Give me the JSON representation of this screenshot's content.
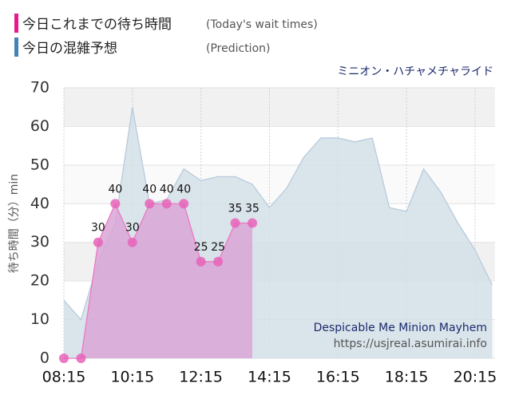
{
  "chart_data": {
    "type": "area",
    "legend": [
      {
        "name": "今日これまでの待ち時間",
        "note": "(Today's wait times)",
        "color": "#e8198b"
      },
      {
        "name": "今日の混雑予想",
        "note": "(Prediction)",
        "color": "#4682b4"
      }
    ],
    "title": "ミニオン・ハチャメチャライド",
    "ylabel": "待ち時間（分）min",
    "watermark": [
      "Despicable Me Minion Mayhem",
      "https://usjreal.asumirai.info"
    ],
    "xlim": [
      495,
      1250
    ],
    "xticks": [
      {
        "value": 495,
        "label": "08:15"
      },
      {
        "value": 615,
        "label": "10:15"
      },
      {
        "value": 735,
        "label": "12:15"
      },
      {
        "value": 855,
        "label": "14:15"
      },
      {
        "value": 975,
        "label": "16:15"
      },
      {
        "value": 1095,
        "label": "18:15"
      },
      {
        "value": 1215,
        "label": "20:15"
      }
    ],
    "ylim": [
      0,
      70
    ],
    "yticks": [
      0,
      10,
      20,
      30,
      40,
      50,
      60,
      70
    ],
    "grid": true,
    "series": [
      {
        "name": "今日の混雑予想",
        "color": "#b8cbdc",
        "fill": "#d3dfe8",
        "x": [
          495,
          525,
          555,
          585,
          615,
          645,
          675,
          705,
          735,
          765,
          795,
          825,
          855,
          885,
          915,
          945,
          975,
          1005,
          1035,
          1065,
          1095,
          1125,
          1155,
          1185,
          1215,
          1245
        ],
        "values": [
          15,
          10,
          25,
          35,
          65,
          40,
          41,
          49,
          46,
          47,
          47,
          45,
          39,
          44,
          52,
          57,
          57,
          56,
          57,
          39,
          38,
          49,
          43,
          35,
          28,
          19
        ]
      },
      {
        "name": "今日これまでの待ち時間",
        "color": "#ee77c4",
        "fill": "#d9a6d6",
        "marker": "#e863b8",
        "x": [
          495,
          525,
          555,
          585,
          615,
          645,
          675,
          705,
          735,
          765,
          795,
          825
        ],
        "values": [
          0,
          0,
          30,
          40,
          30,
          40,
          40,
          40,
          25,
          25,
          35,
          35
        ],
        "value_labels": [
          null,
          null,
          "30",
          "40",
          "30",
          "40",
          "40",
          "40",
          "25",
          "25",
          "35",
          "35"
        ]
      }
    ]
  }
}
